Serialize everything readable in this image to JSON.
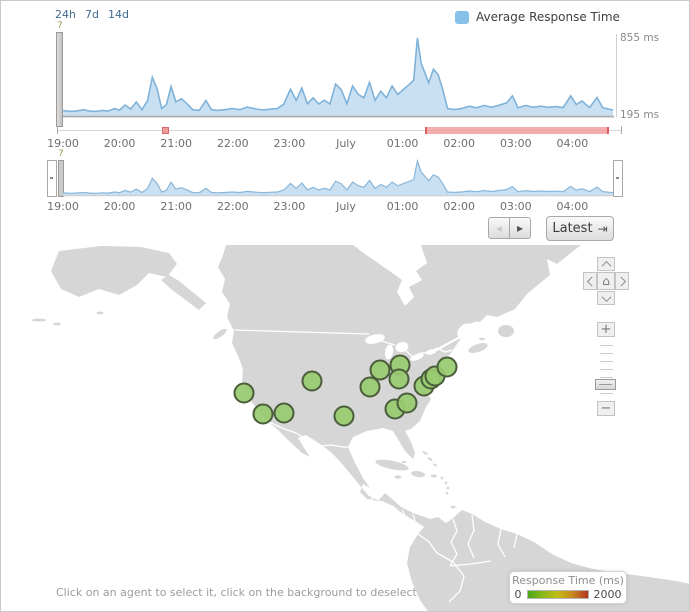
{
  "panel": {
    "period_links": [
      "24h",
      "7d",
      "14d"
    ],
    "zoom_level_label": "7",
    "legend_label": "Average Response Time",
    "colors": {
      "series": "#7cb5ec",
      "series_fill": "#c9e0f2",
      "problem_red": "#e87070",
      "agent_green": "#98cb70"
    }
  },
  "nav": {
    "prev_icon": "◂",
    "next_icon": "▸",
    "latest_label": "Latest",
    "latest_icon": "⇥"
  },
  "chart_data": {
    "type": "area",
    "title": "",
    "legend_position": "top-right",
    "x_ticks": [
      "19:00",
      "20:00",
      "21:00",
      "22:00",
      "23:00",
      "July",
      "01:00",
      "02:00",
      "03:00",
      "04:00"
    ],
    "minutes_span": 585,
    "y_axis": {
      "min": 195,
      "max": 855,
      "min_label": "195 ms",
      "max_label": "855 ms"
    },
    "series": [
      {
        "name": "Average Response Time",
        "points_min_ms": [
          [
            0,
            245
          ],
          [
            8,
            238
          ],
          [
            15,
            242
          ],
          [
            22,
            252
          ],
          [
            28,
            240
          ],
          [
            35,
            238
          ],
          [
            42,
            246
          ],
          [
            48,
            240
          ],
          [
            55,
            262
          ],
          [
            60,
            248
          ],
          [
            66,
            292
          ],
          [
            72,
            258
          ],
          [
            78,
            318
          ],
          [
            84,
            252
          ],
          [
            90,
            330
          ],
          [
            95,
            525
          ],
          [
            100,
            430
          ],
          [
            105,
            262
          ],
          [
            110,
            295
          ],
          [
            115,
            448
          ],
          [
            120,
            318
          ],
          [
            126,
            345
          ],
          [
            132,
            302
          ],
          [
            138,
            252
          ],
          [
            145,
            246
          ],
          [
            152,
            330
          ],
          [
            158,
            252
          ],
          [
            165,
            246
          ],
          [
            172,
            252
          ],
          [
            180,
            262
          ],
          [
            188,
            252
          ],
          [
            196,
            274
          ],
          [
            205,
            258
          ],
          [
            213,
            250
          ],
          [
            220,
            256
          ],
          [
            228,
            262
          ],
          [
            235,
            300
          ],
          [
            242,
            425
          ],
          [
            248,
            330
          ],
          [
            254,
            435
          ],
          [
            260,
            302
          ],
          [
            266,
            352
          ],
          [
            272,
            300
          ],
          [
            278,
            332
          ],
          [
            284,
            300
          ],
          [
            290,
            468
          ],
          [
            296,
            420
          ],
          [
            302,
            302
          ],
          [
            308,
            452
          ],
          [
            314,
            382
          ],
          [
            320,
            352
          ],
          [
            326,
            482
          ],
          [
            332,
            330
          ],
          [
            338,
            408
          ],
          [
            344,
            352
          ],
          [
            350,
            452
          ],
          [
            356,
            380
          ],
          [
            362,
            422
          ],
          [
            368,
            462
          ],
          [
            373,
            500
          ],
          [
            377,
            855
          ],
          [
            381,
            640
          ],
          [
            385,
            560
          ],
          [
            389,
            478
          ],
          [
            394,
            592
          ],
          [
            399,
            548
          ],
          [
            404,
            420
          ],
          [
            409,
            262
          ],
          [
            416,
            254
          ],
          [
            424,
            262
          ],
          [
            432,
            282
          ],
          [
            440,
            268
          ],
          [
            448,
            288
          ],
          [
            456,
            272
          ],
          [
            464,
            290
          ],
          [
            472,
            310
          ],
          [
            478,
            368
          ],
          [
            484,
            268
          ],
          [
            492,
            288
          ],
          [
            500,
            272
          ],
          [
            508,
            282
          ],
          [
            516,
            272
          ],
          [
            524,
            278
          ],
          [
            532,
            270
          ],
          [
            540,
            368
          ],
          [
            546,
            296
          ],
          [
            552,
            325
          ],
          [
            560,
            270
          ],
          [
            568,
            355
          ],
          [
            574,
            270
          ],
          [
            580,
            258
          ],
          [
            585,
            250
          ]
        ]
      }
    ],
    "navigator_shows_same_series": true
  },
  "timeline": {
    "marker_frac": 0.19,
    "problem_range_frac": [
      0.651,
      0.978
    ]
  },
  "map": {
    "agents": [
      [
        243,
        392
      ],
      [
        262,
        413
      ],
      [
        283,
        412
      ],
      [
        311,
        380
      ],
      [
        343,
        415
      ],
      [
        369,
        386
      ],
      [
        379,
        369
      ],
      [
        399,
        364
      ],
      [
        398,
        378
      ],
      [
        394,
        408
      ],
      [
        406,
        402
      ],
      [
        423,
        385
      ],
      [
        430,
        378
      ],
      [
        434,
        375
      ],
      [
        446,
        366
      ]
    ],
    "hint": "Click on an agent to select it, click on the background to deselect",
    "legend": {
      "title": "Response Time (ms)",
      "min_label": "0",
      "max_label": "2000"
    }
  },
  "controls": {
    "home_icon": "⌂",
    "zoom_in": "+",
    "zoom_out": "−"
  }
}
